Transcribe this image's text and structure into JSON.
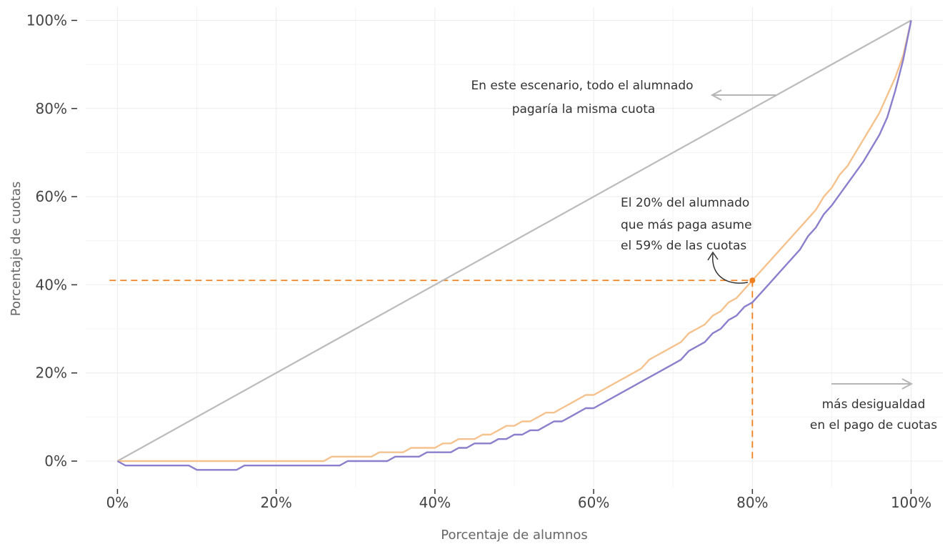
{
  "chart_data": {
    "type": "line",
    "xlabel": "Porcentaje de alumnos",
    "ylabel": "Porcentaje de cuotas",
    "xlim": [
      -0.04,
      1.04
    ],
    "ylim": [
      -0.06,
      1.03
    ],
    "x_ticks": [
      0,
      0.2,
      0.4,
      0.6,
      0.8,
      1.0
    ],
    "x_tick_labels": [
      "0%",
      "20%",
      "40%",
      "60%",
      "80%",
      "100%"
    ],
    "y_ticks": [
      0,
      0.2,
      0.4,
      0.6,
      0.8,
      1.0
    ],
    "y_tick_labels": [
      "0%",
      "20%",
      "40%",
      "60%",
      "80%",
      "100%"
    ],
    "grid": true,
    "series": [
      {
        "color": "#bbbbbb",
        "x": [
          0,
          1
        ],
        "y": [
          0,
          1
        ]
      },
      {
        "color": "#f5c28e",
        "x": [
          0,
          0.26,
          0.27,
          0.32,
          0.33,
          0.36,
          0.37,
          0.4,
          0.41,
          0.42,
          0.43,
          0.44,
          0.45,
          0.46,
          0.47,
          0.48,
          0.49,
          0.5,
          0.51,
          0.52,
          0.53,
          0.54,
          0.55,
          0.56,
          0.57,
          0.58,
          0.59,
          0.6,
          0.61,
          0.62,
          0.63,
          0.64,
          0.65,
          0.66,
          0.67,
          0.68,
          0.69,
          0.7,
          0.71,
          0.72,
          0.73,
          0.74,
          0.75,
          0.76,
          0.77,
          0.78,
          0.79,
          0.8,
          0.82,
          0.84,
          0.86,
          0.88,
          0.89,
          0.9,
          0.91,
          0.92,
          0.93,
          0.94,
          0.95,
          0.96,
          0.97,
          0.98,
          0.99,
          1.0
        ],
        "y": [
          0,
          0,
          0.01,
          0.01,
          0.02,
          0.02,
          0.03,
          0.03,
          0.04,
          0.04,
          0.05,
          0.05,
          0.05,
          0.06,
          0.06,
          0.07,
          0.08,
          0.08,
          0.09,
          0.09,
          0.1,
          0.11,
          0.11,
          0.12,
          0.13,
          0.14,
          0.15,
          0.15,
          0.16,
          0.17,
          0.18,
          0.19,
          0.2,
          0.21,
          0.23,
          0.24,
          0.25,
          0.26,
          0.27,
          0.29,
          0.3,
          0.31,
          0.33,
          0.34,
          0.36,
          0.37,
          0.39,
          0.41,
          0.45,
          0.49,
          0.53,
          0.57,
          0.6,
          0.62,
          0.65,
          0.67,
          0.7,
          0.73,
          0.76,
          0.79,
          0.83,
          0.87,
          0.92,
          1.0
        ]
      },
      {
        "color": "#8a7fcc",
        "x": [
          0,
          0.01,
          0.09,
          0.1,
          0.15,
          0.16,
          0.28,
          0.29,
          0.34,
          0.35,
          0.38,
          0.39,
          0.42,
          0.43,
          0.44,
          0.45,
          0.47,
          0.48,
          0.49,
          0.5,
          0.51,
          0.52,
          0.53,
          0.54,
          0.55,
          0.56,
          0.57,
          0.58,
          0.59,
          0.6,
          0.7,
          0.71,
          0.72,
          0.74,
          0.75,
          0.76,
          0.77,
          0.78,
          0.79,
          0.8,
          0.82,
          0.84,
          0.86,
          0.87,
          0.88,
          0.89,
          0.9,
          0.92,
          0.94,
          0.95,
          0.96,
          0.97,
          0.98,
          0.99,
          1.0
        ],
        "y": [
          0,
          -0.01,
          -0.01,
          -0.02,
          -0.02,
          -0.01,
          -0.01,
          0,
          0,
          0.01,
          0.01,
          0.02,
          0.02,
          0.03,
          0.03,
          0.04,
          0.04,
          0.05,
          0.05,
          0.06,
          0.06,
          0.07,
          0.07,
          0.08,
          0.09,
          0.09,
          0.1,
          0.11,
          0.12,
          0.12,
          0.22,
          0.23,
          0.25,
          0.27,
          0.29,
          0.3,
          0.32,
          0.33,
          0.35,
          0.36,
          0.4,
          0.44,
          0.48,
          0.51,
          0.53,
          0.56,
          0.58,
          0.63,
          0.68,
          0.71,
          0.74,
          0.78,
          0.84,
          0.91,
          1.0
        ]
      }
    ],
    "reference_lines": [
      {
        "color": "#f07f1e",
        "from": [
          -0.01,
          0.41
        ],
        "to": [
          0.8,
          0.41
        ]
      },
      {
        "color": "#f07f1e",
        "from": [
          0.8,
          0.41
        ],
        "to": [
          0.8,
          0.0
        ]
      }
    ],
    "highlight_point": {
      "x": 0.8,
      "y": 0.41,
      "color": "#f07f1e"
    },
    "annotations": [
      {
        "lines": [
          "En este escenario, todo el alumnado",
          "pagaría  la  misma  cuota"
        ]
      },
      {
        "lines": [
          "El 20% del alumnado",
          "que  más  paga  asume",
          "el 59% de las cuotas"
        ]
      },
      {
        "lines": [
          "más  desigualdad",
          "en el pago de cuotas"
        ]
      }
    ],
    "colors": {
      "grid": "#ececec",
      "annotation_arrow": "#b5b5b5",
      "curved_arrow": "#333333"
    }
  }
}
